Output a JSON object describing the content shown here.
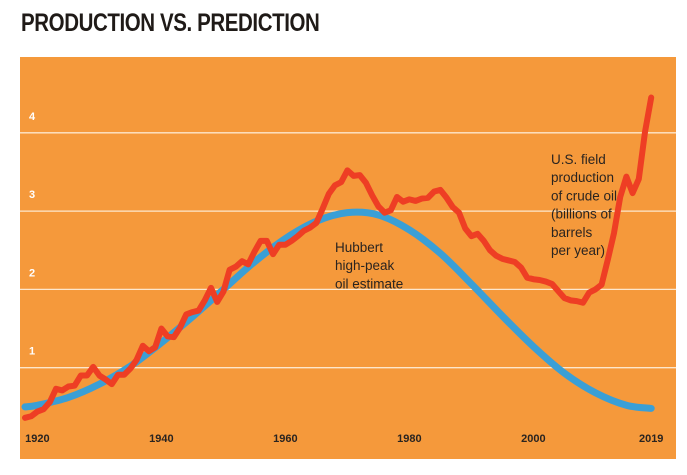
{
  "title": "PRODUCTION VS. PREDICTION",
  "colors": {
    "background": "#f5993b",
    "gridline": "#fde7cc",
    "production": "#ee3e24",
    "hubbert": "#3a9fd6",
    "tick_y": "#ffffff",
    "tick_x": "#2a2420",
    "annotation": "#2a2420"
  },
  "chart_data": {
    "type": "line",
    "title": "PRODUCTION VS. PREDICTION",
    "xlabel": "",
    "ylabel": "",
    "xlim": [
      1918,
      2020
    ],
    "ylim": [
      0,
      4.6
    ],
    "grid": "horizontal",
    "x_ticks": [
      {
        "value": 1920,
        "label": "1920"
      },
      {
        "value": 1940,
        "label": "1940"
      },
      {
        "value": 1960,
        "label": "1960"
      },
      {
        "value": 1980,
        "label": "1980"
      },
      {
        "value": 2000,
        "label": "2000"
      },
      {
        "value": 2019,
        "label": "2019"
      }
    ],
    "y_ticks": [
      {
        "value": 1,
        "label": "1"
      },
      {
        "value": 2,
        "label": "2"
      },
      {
        "value": 3,
        "label": "3"
      },
      {
        "value": 4,
        "label": "4"
      }
    ],
    "series": [
      {
        "name": "U.S. field production of crude oil (billions of barrels per year)",
        "key": "production",
        "x": [
          1918,
          1919,
          1920,
          1921,
          1922,
          1923,
          1924,
          1925,
          1926,
          1927,
          1928,
          1929,
          1930,
          1931,
          1932,
          1933,
          1934,
          1935,
          1936,
          1937,
          1938,
          1939,
          1940,
          1941,
          1942,
          1943,
          1944,
          1945,
          1946,
          1947,
          1948,
          1949,
          1950,
          1951,
          1952,
          1953,
          1954,
          1955,
          1956,
          1957,
          1958,
          1959,
          1960,
          1961,
          1962,
          1963,
          1964,
          1965,
          1966,
          1967,
          1968,
          1969,
          1970,
          1971,
          1972,
          1973,
          1974,
          1975,
          1976,
          1977,
          1978,
          1979,
          1980,
          1981,
          1982,
          1983,
          1984,
          1985,
          1986,
          1987,
          1988,
          1989,
          1990,
          1991,
          1992,
          1993,
          1994,
          1995,
          1996,
          1997,
          1998,
          1999,
          2000,
          2001,
          2002,
          2003,
          2004,
          2005,
          2006,
          2007,
          2008,
          2009,
          2010,
          2011,
          2012,
          2013,
          2014,
          2015,
          2016,
          2017,
          2018,
          2019
        ],
        "values": [
          0.36,
          0.38,
          0.44,
          0.47,
          0.56,
          0.73,
          0.71,
          0.76,
          0.77,
          0.9,
          0.9,
          1.01,
          0.9,
          0.85,
          0.79,
          0.91,
          0.91,
          0.99,
          1.1,
          1.28,
          1.21,
          1.26,
          1.5,
          1.4,
          1.39,
          1.51,
          1.68,
          1.71,
          1.73,
          1.86,
          2.02,
          1.84,
          1.97,
          2.25,
          2.29,
          2.36,
          2.32,
          2.48,
          2.62,
          2.62,
          2.45,
          2.57,
          2.57,
          2.62,
          2.68,
          2.75,
          2.79,
          2.85,
          3.03,
          3.22,
          3.33,
          3.37,
          3.52,
          3.45,
          3.46,
          3.36,
          3.2,
          3.06,
          2.98,
          3.01,
          3.18,
          3.12,
          3.15,
          3.13,
          3.16,
          3.17,
          3.25,
          3.27,
          3.17,
          3.05,
          2.98,
          2.78,
          2.68,
          2.71,
          2.62,
          2.5,
          2.43,
          2.39,
          2.37,
          2.35,
          2.28,
          2.15,
          2.13,
          2.12,
          2.1,
          2.07,
          1.98,
          1.89,
          1.86,
          1.85,
          1.83,
          1.96,
          2.0,
          2.06,
          2.38,
          2.72,
          3.18,
          3.44,
          3.23,
          3.41,
          4.01,
          4.45
        ]
      },
      {
        "name": "Hubbert high-peak oil estimate",
        "key": "hubbert",
        "x": [
          1918,
          1920,
          1925,
          1930,
          1935,
          1940,
          1945,
          1950,
          1955,
          1960,
          1965,
          1970,
          1975,
          1980,
          1985,
          1990,
          1995,
          2000,
          2005,
          2010,
          2015,
          2019
        ],
        "values": [
          0.5,
          0.52,
          0.62,
          0.79,
          1.02,
          1.32,
          1.65,
          2.0,
          2.35,
          2.65,
          2.87,
          2.98,
          2.95,
          2.76,
          2.46,
          2.07,
          1.66,
          1.27,
          0.93,
          0.68,
          0.52,
          0.48
        ]
      }
    ],
    "annotations": [
      {
        "key": "hubbert_label",
        "lines": [
          "Hubbert",
          "high-peak",
          "oil estimate"
        ]
      },
      {
        "key": "production_label",
        "lines": [
          "U.S. field",
          "production",
          "of crude oil",
          "(billions of",
          "barrels",
          "per year)"
        ]
      }
    ],
    "legend": "none (inline annotations)"
  }
}
